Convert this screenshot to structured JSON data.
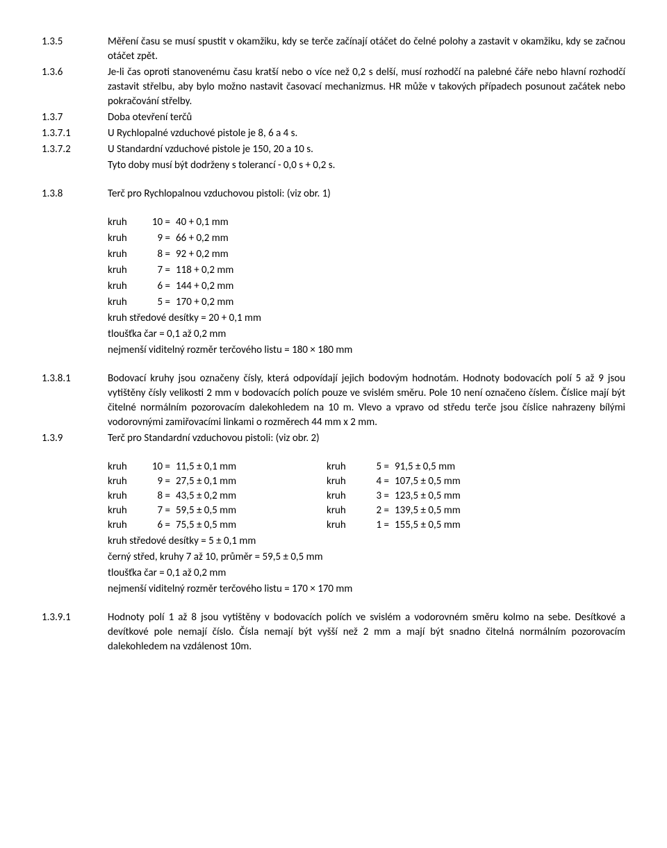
{
  "p135": {
    "num": "1.3.5",
    "text": "Měření času se musí spustit v okamžiku, kdy se terče začínají otáčet do čelné polohy a zastavit v okamžiku, kdy se začnou otáčet zpět."
  },
  "p136": {
    "num": "1.3.6",
    "text": "Je-li čas oproti stanovenému času kratší nebo o více než 0,2 s delší, musí rozhodčí na palebné čáře nebo hlavní rozhodčí zastavit střelbu, aby bylo možno nastavit časovací mechanizmus. HR může v takových případech posunout začátek nebo pokračování střelby."
  },
  "p137": {
    "num": "1.3.7",
    "text": "Doba otevření terčů"
  },
  "p1371": {
    "num": "1.3.7.1",
    "text": "U Rychlopalné vzduchové pistole je 8, 6 a 4 s."
  },
  "p1372": {
    "num": "1.3.7.2",
    "text": "U Standardní vzduchové pistole je 150, 20 a 10 s."
  },
  "p1372b": {
    "text": "Tyto doby musí být dodrženy s tolerancí - 0,0 s + 0,2 s."
  },
  "p138": {
    "num": "1.3.8",
    "text": "Terč pro Rychlopalnou vzduchovou pistoli: (viz obr. 1)"
  },
  "rings1": [
    {
      "label": "kruh",
      "n": "10 =",
      "v": "40 + 0,1 mm"
    },
    {
      "label": "kruh",
      "n": "9 =",
      "v": "66 + 0,2 mm"
    },
    {
      "label": "kruh",
      "n": "8 =",
      "v": "92 + 0,2 mm"
    },
    {
      "label": "kruh",
      "n": "7 =",
      "v": "118 + 0,2 mm"
    },
    {
      "label": "kruh",
      "n": "6 =",
      "v": "144 + 0,2 mm"
    },
    {
      "label": "kruh",
      "n": "5 =",
      "v": "170 + 0,2 mm"
    }
  ],
  "rings1_extra": [
    "kruh středové desítky = 20 + 0,1 mm",
    "tloušťka čar = 0,1 až 0,2 mm",
    "nejmenší viditelný rozměr terčového listu = 180 × 180 mm"
  ],
  "p1381": {
    "num": "1.3.8.1",
    "text": "Bodovací kruhy jsou označeny čísly, která odpovídají jejich bodovým hodnotám. Hodnoty bodovacích polí 5 až 9 jsou vytištěny čísly velikosti 2 mm v bodovacích polích pouze ve svislém směru. Pole 10 není označeno číslem. Číslice mají být čitelné normálním pozorovacím dalekohledem na 10 m. Vlevo a vpravo od středu terče jsou číslice nahrazeny bílými vodorovnými zamiřovacími linkami o rozměrech 44 mm x 2 mm."
  },
  "p139": {
    "num": "1.3.9",
    "text": "Terč pro Standardní vzduchovou pistoli: (viz obr. 2)"
  },
  "rings2_left": [
    {
      "label": "kruh",
      "n": "10 =",
      "v": "11,5 ± 0,1 mm"
    },
    {
      "label": "kruh",
      "n": "9 =",
      "v": "27,5 ± 0,1 mm"
    },
    {
      "label": "kruh",
      "n": "8 =",
      "v": "43,5 ± 0,2 mm"
    },
    {
      "label": "kruh",
      "n": "7 =",
      "v": "59,5 ± 0,5 mm"
    },
    {
      "label": "kruh",
      "n": "6 =",
      "v": "75,5 ± 0,5 mm"
    }
  ],
  "rings2_right": [
    {
      "label": "kruh",
      "n": "5 =",
      "v": "91,5 ± 0,5 mm"
    },
    {
      "label": "kruh",
      "n": "4 =",
      "v": "107,5 ± 0,5 mm"
    },
    {
      "label": "kruh",
      "n": "3 =",
      "v": "123,5 ± 0,5 mm"
    },
    {
      "label": "kruh",
      "n": "2 =",
      "v": "139,5 ± 0,5 mm"
    },
    {
      "label": "kruh",
      "n": "1 =",
      "v": "155,5 ± 0,5 mm"
    }
  ],
  "rings2_extra": [
    "kruh středové desítky = 5 ± 0,1 mm",
    "černý střed, kruhy 7 až 10, průměr = 59,5 ± 0,5 mm",
    "tloušťka čar = 0,1 až 0,2 mm",
    "nejmenší viditelný rozměr terčového listu = 170 × 170 mm"
  ],
  "p1391": {
    "num": "1.3.9.1",
    "text": "Hodnoty polí 1 až 8 jsou vytištěny v bodovacích polích ve svislém a vodorovném směru kolmo na sebe. Desítkové a devítkové pole nemají číslo. Čísla nemají být vyšší než 2 mm a mají být snadno čitelná normálním pozorovacím dalekohledem na vzdálenost 10m."
  }
}
